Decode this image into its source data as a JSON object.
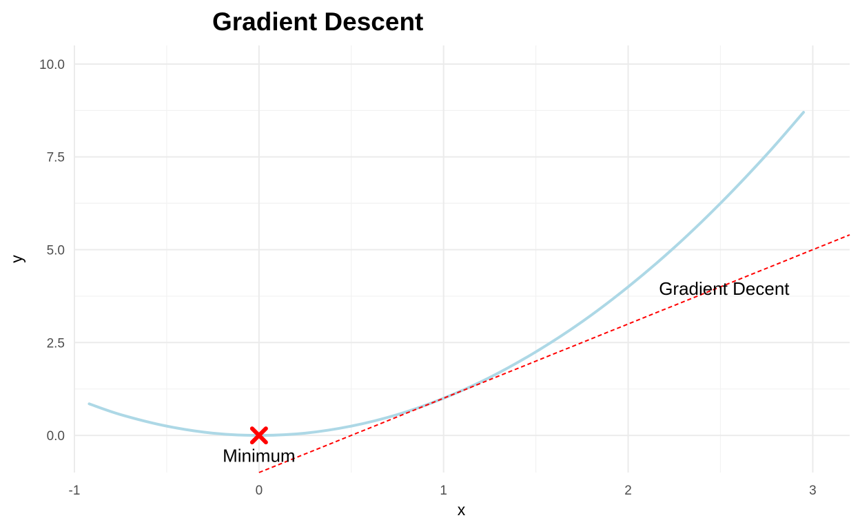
{
  "chart_data": {
    "type": "line",
    "title": "Gradient Descent",
    "xlabel": "x",
    "ylabel": "y",
    "xlim": [
      -1,
      3.2
    ],
    "ylim": [
      -1.0,
      10.5
    ],
    "grid": true,
    "x_ticks": [
      -1,
      0,
      1,
      2,
      3
    ],
    "x_tick_labels": [
      "-1",
      "0",
      "1",
      "2",
      "3"
    ],
    "y_ticks": [
      0,
      2.5,
      5,
      7.5,
      10
    ],
    "y_tick_labels": [
      "0.0",
      "2.5",
      "5.0",
      "7.5",
      "10.0"
    ],
    "series": [
      {
        "kind": "curve",
        "color": "#add8e6",
        "x": [
          -0.92,
          -0.75,
          -0.5,
          -0.25,
          0,
          0.25,
          0.5,
          0.75,
          1,
          1.25,
          1.5,
          1.75,
          2,
          2.25,
          2.5,
          2.75,
          2.95
        ],
        "y": [
          0.85,
          0.56,
          0.25,
          0.06,
          0,
          0.06,
          0.25,
          0.56,
          1,
          1.56,
          2.25,
          3.06,
          4,
          5.06,
          6.25,
          7.56,
          8.7
        ]
      },
      {
        "kind": "tangent-line",
        "color": "#ff0000",
        "dash": "dashed",
        "x": [
          0,
          3.2
        ],
        "y": [
          -1,
          5.4
        ]
      }
    ],
    "points": [
      {
        "x": 0,
        "y": 0,
        "marker": "x",
        "color": "#ff0000"
      }
    ],
    "annotations": [
      {
        "text": "Minimum",
        "x": 0,
        "y": -0.55
      },
      {
        "text": "Gradient  Decent",
        "x": 2.52,
        "y": 3.95
      }
    ]
  }
}
